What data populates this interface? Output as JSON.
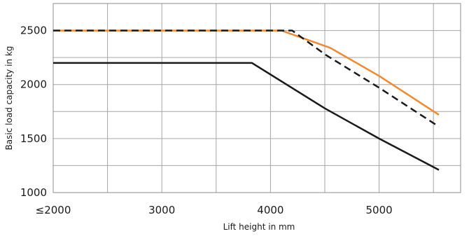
{
  "chart_data": {
    "type": "line",
    "title": "",
    "xlabel": "Lift height in mm",
    "ylabel": "Basic load capacity in kg",
    "xlim": [
      2000,
      5750
    ],
    "ylim": [
      1000,
      2750
    ],
    "x_ticks": [
      2000,
      3000,
      4000,
      5000
    ],
    "x_tick_labels": [
      "≤2000",
      "3000",
      "4000",
      "5000"
    ],
    "y_ticks": [
      1000,
      1500,
      2000,
      2500
    ],
    "y_tick_labels": [
      "1000",
      "1500",
      "2000",
      "2500"
    ],
    "grid": true,
    "legend": "none",
    "series": [
      {
        "color": "#1a1a1a",
        "style": "dashed",
        "points": [
          [
            2000,
            2500
          ],
          [
            4200,
            2500
          ],
          [
            4500,
            2280
          ],
          [
            5000,
            1970
          ],
          [
            5550,
            1610
          ]
        ]
      },
      {
        "color": "#f0892f",
        "style": "solid",
        "points": [
          [
            2000,
            2500
          ],
          [
            4100,
            2500
          ],
          [
            4550,
            2340
          ],
          [
            5000,
            2080
          ],
          [
            5550,
            1720
          ]
        ]
      },
      {
        "color": "#1a1a1a",
        "style": "solid",
        "points": [
          [
            2000,
            2200
          ],
          [
            3830,
            2200
          ],
          [
            4500,
            1780
          ],
          [
            5000,
            1500
          ],
          [
            5550,
            1210
          ]
        ]
      }
    ]
  }
}
